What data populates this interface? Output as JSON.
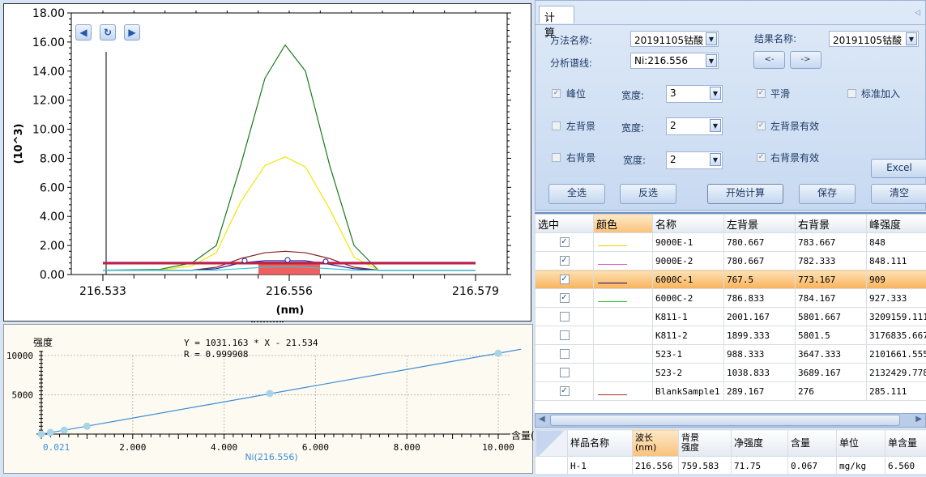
{
  "spectrum": {
    "nav": {
      "prev_icon": "arrow-left-icon",
      "refresh_icon": "refresh-icon",
      "next_icon": "arrow-right-icon"
    },
    "chart_data": {
      "type": "line",
      "ylabel": "(10^3)",
      "xlabel": "(nm)",
      "ylim": [
        0,
        18
      ],
      "xlim": [
        216.533,
        216.579
      ],
      "yticks": [
        "0.00",
        "2.00",
        "4.00",
        "6.00",
        "8.00",
        "10.00",
        "12.00",
        "14.00",
        "16.00",
        "18.00"
      ],
      "xticks": [
        "216.533",
        "216.556",
        "216.579"
      ],
      "x": [
        216.533,
        216.54,
        216.544,
        216.547,
        216.55,
        216.553,
        216.5555,
        216.558,
        216.561,
        216.564,
        216.567,
        216.572,
        216.579
      ],
      "series": [
        {
          "color": "#1a7a1a",
          "values": [
            0.3,
            0.35,
            0.8,
            2.0,
            7.5,
            13.5,
            15.8,
            14.0,
            7.5,
            2.0,
            0.3,
            0.3,
            0.3
          ]
        },
        {
          "color": "#f2e600",
          "values": [
            0.3,
            0.3,
            0.6,
            1.5,
            5.0,
            7.5,
            8.1,
            7.4,
            4.5,
            1.2,
            0.3,
            0.3,
            0.3
          ]
        },
        {
          "color": "#8b2020",
          "values": [
            0.3,
            0.3,
            0.3,
            0.5,
            1.1,
            1.5,
            1.6,
            1.5,
            1.1,
            0.5,
            0.3,
            0.3,
            0.3
          ]
        },
        {
          "color": "#1a1aa0",
          "values": [
            0.3,
            0.3,
            0.3,
            0.4,
            0.8,
            0.95,
            0.95,
            0.95,
            0.7,
            0.4,
            0.3,
            0.3,
            0.3
          ]
        },
        {
          "color": "#30c8d8",
          "values": [
            0.3,
            0.3,
            0.3,
            0.3,
            0.4,
            0.5,
            0.55,
            0.5,
            0.4,
            0.3,
            0.3,
            0.3,
            0.3
          ]
        },
        {
          "color": "#9a2aa0",
          "values": [
            0.82,
            0.82,
            0.82,
            0.82,
            0.82,
            0.82,
            0.82,
            0.82,
            0.82,
            0.82,
            0.82,
            0.82,
            0.82
          ]
        },
        {
          "color": "#d02020",
          "values": [
            0.75,
            0.75,
            0.75,
            0.75,
            0.75,
            0.75,
            0.75,
            0.75,
            0.75,
            0.75,
            0.75,
            0.75,
            0.75
          ]
        }
      ]
    }
  },
  "calibration": {
    "chart_data": {
      "type": "scatter",
      "ylabel": "强度",
      "xlabel": "含量(",
      "series_label": "Ni(216.556)",
      "equation": "Y = 1031.163 * X - 21.534",
      "r": "R = 0.999908",
      "xlim": [
        0,
        10.5
      ],
      "ylim": [
        0,
        11000
      ],
      "xticks": [
        "2.000",
        "4.000",
        "6.000",
        "8.000",
        "10.000"
      ],
      "first_tick": "0.021",
      "yticks": [
        "5000",
        "10000"
      ],
      "x": [
        0,
        0.2,
        0.5,
        1,
        5,
        10
      ],
      "values": [
        0,
        200,
        490,
        1000,
        5170,
        10290
      ],
      "fit": {
        "slope": 1031.163,
        "intercept": -21.534
      }
    }
  },
  "panel": {
    "tab": "计 算",
    "method_label": "方法名称:",
    "method_value": "20191105钴酸",
    "result_label": "结果名称:",
    "result_value": "20191105钴酸",
    "line_label": "分析谱线:",
    "line_value": "Ni:216.556",
    "prev": "<-",
    "next": "->",
    "peak": "峰位",
    "peak_checked": true,
    "width_label": "宽度:",
    "peak_width": "3",
    "smooth": "平滑",
    "smooth_checked": true,
    "std_add": "标准加入",
    "std_add_checked": false,
    "left_bg": "左背景",
    "left_bg_checked": false,
    "left_width": "2",
    "left_valid": "左背景有效",
    "left_valid_checked": true,
    "right_bg": "右背景",
    "right_bg_checked": false,
    "right_width": "2",
    "right_valid": "右背景有效",
    "right_valid_checked": true,
    "buttons": {
      "all": "全选",
      "invert": "反选",
      "calc": "开始计算",
      "save": "保存",
      "excel": "Excel",
      "clear": "清空"
    }
  },
  "samples": {
    "headers": [
      "选中",
      "颜色",
      "名称",
      "左背景",
      "右背景",
      "峰强度"
    ],
    "rows": [
      {
        "checked": true,
        "color": "#f2d000",
        "name": "9000E-1",
        "left": "780.667",
        "right": "783.667",
        "peak": "848"
      },
      {
        "checked": true,
        "color": "#e060c0",
        "name": "9000E-2",
        "left": "780.667",
        "right": "782.333",
        "peak": "848.111"
      },
      {
        "checked": true,
        "color": "#101060",
        "name": "6000C-1",
        "left": "767.5",
        "right": "773.167",
        "peak": "909",
        "selected": true
      },
      {
        "checked": true,
        "color": "#20c020",
        "name": "6000C-2",
        "left": "786.833",
        "right": "784.167",
        "peak": "927.333"
      },
      {
        "checked": false,
        "color": "",
        "name": "K811-1",
        "left": "2001.167",
        "right": "5801.667",
        "peak": "3209159.111"
      },
      {
        "checked": false,
        "color": "",
        "name": "K811-2",
        "left": "1899.333",
        "right": "5801.5",
        "peak": "3176835.667"
      },
      {
        "checked": false,
        "color": "",
        "name": "523-1",
        "left": "988.333",
        "right": "3647.333",
        "peak": "2101661.555"
      },
      {
        "checked": false,
        "color": "",
        "name": "523-2",
        "left": "1038.833",
        "right": "3689.167",
        "peak": "2132429.778"
      },
      {
        "checked": true,
        "color": "#a03020",
        "name": "BlankSample1",
        "left": "289.167",
        "right": "276",
        "peak": "285.111"
      }
    ]
  },
  "results": {
    "headers": [
      "样品名称",
      "波长\n(nm)",
      "背景\n强度",
      "净强度",
      "含量",
      "单位",
      "单含量"
    ],
    "rows": [
      [
        "H-1",
        "216.556",
        "759.583",
        "71.75",
        "0.067",
        "mg/kg",
        "6.560"
      ]
    ]
  }
}
